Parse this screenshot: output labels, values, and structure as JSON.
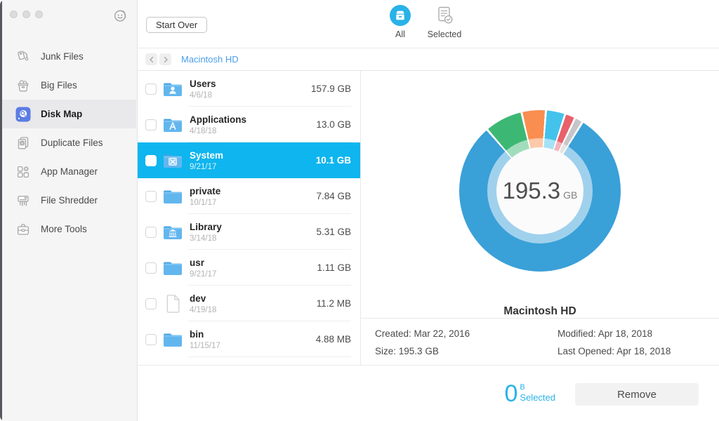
{
  "window": {
    "traffic_lights": [
      "close",
      "minimize",
      "zoom"
    ]
  },
  "sidebar": {
    "items": [
      {
        "label": "Junk Files",
        "icon": "junk-files",
        "selected": false
      },
      {
        "label": "Big Files",
        "icon": "big-files",
        "selected": false
      },
      {
        "label": "Disk Map",
        "icon": "disk-map",
        "selected": true
      },
      {
        "label": "Duplicate Files",
        "icon": "duplicate-files",
        "selected": false
      },
      {
        "label": "App Manager",
        "icon": "app-manager",
        "selected": false
      },
      {
        "label": "File Shredder",
        "icon": "file-shredder",
        "selected": false
      },
      {
        "label": "More Tools",
        "icon": "more-tools",
        "selected": false
      }
    ]
  },
  "toolbar": {
    "start_over_label": "Start Over",
    "tabs": [
      {
        "label": "All",
        "icon": "all-box-icon",
        "active": true
      },
      {
        "label": "Selected",
        "icon": "doc-check-icon",
        "active": false
      }
    ]
  },
  "breadcrumb": {
    "path": "Macintosh HD"
  },
  "file_list": {
    "rows": [
      {
        "name": "Users",
        "date": "4/6/18",
        "size": "157.9 GB",
        "icon": "folder-users",
        "selected": false
      },
      {
        "name": "Applications",
        "date": "4/18/18",
        "size": "13.0 GB",
        "icon": "folder-applications",
        "selected": false
      },
      {
        "name": "System",
        "date": "9/21/17",
        "size": "10.1 GB",
        "icon": "folder-system",
        "selected": true
      },
      {
        "name": "private",
        "date": "10/1/17",
        "size": "7.84 GB",
        "icon": "folder",
        "selected": false
      },
      {
        "name": "Library",
        "date": "3/14/18",
        "size": "5.31 GB",
        "icon": "folder-library",
        "selected": false
      },
      {
        "name": "usr",
        "date": "9/21/17",
        "size": "1.11 GB",
        "icon": "folder",
        "selected": false
      },
      {
        "name": "dev",
        "date": "4/19/18",
        "size": "11.2 MB",
        "icon": "file",
        "selected": false
      },
      {
        "name": "bin",
        "date": "11/15/17",
        "size": "4.88 MB",
        "icon": "folder",
        "selected": false
      }
    ]
  },
  "chart_data": {
    "type": "donut",
    "title": "Macintosh HD",
    "center_value": "195.3",
    "center_unit": "GB",
    "start_angle_deg": -40,
    "gap_deg": 1.5,
    "gap_color": "#ffffff",
    "segments": [
      {
        "color": "#3CB874",
        "deg": 26
      },
      {
        "color": "#FA8E50",
        "deg": 16
      },
      {
        "color": "#43C3EC",
        "deg": 12.5
      },
      {
        "color": "#E8616B",
        "deg": 6
      },
      {
        "color": "#C6C6CA",
        "deg": 4.5
      },
      {
        "color": "#3AA0D8",
        "deg": 286
      }
    ]
  },
  "details": {
    "fields": [
      {
        "label": "Created:",
        "value": "Mar 22, 2016"
      },
      {
        "label": "Modified:",
        "value": "Apr 18, 2018"
      },
      {
        "label": "Size:",
        "value": "195.3 GB"
      },
      {
        "label": "Last Opened:",
        "value": "Apr 18, 2018"
      }
    ]
  },
  "footer": {
    "selected_size": "0",
    "selected_unit": "B",
    "selected_label": "Selected",
    "remove_label": "Remove"
  },
  "colors": {
    "accent_cyan": "#29B2E8",
    "selected_row": "#0FB5EE",
    "link_blue": "#4A9FE8",
    "sidebar_icon_accent": "#5B7CE4"
  }
}
